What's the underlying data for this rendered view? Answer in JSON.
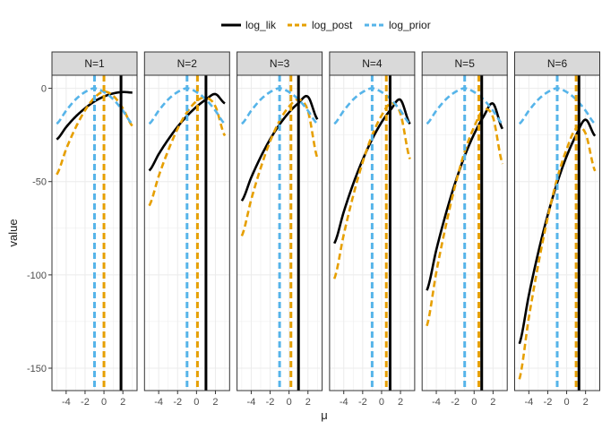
{
  "chart_data": {
    "type": "line",
    "facet_prefix": "N=",
    "facets": [
      {
        "label": "N=1",
        "n": 1
      },
      {
        "label": "N=2",
        "n": 2
      },
      {
        "label": "N=3",
        "n": 3
      },
      {
        "label": "N=4",
        "n": 4
      },
      {
        "label": "N=5",
        "n": 5
      },
      {
        "label": "N=6",
        "n": 6
      }
    ],
    "xlabel": "μ",
    "ylabel": "value",
    "x_range": [
      -5.5,
      3.5
    ],
    "ylim": [
      -162,
      7
    ],
    "x_ticks": [
      -4,
      -2,
      0,
      2
    ],
    "x_tick_labels": [
      "-4",
      "-2",
      "0",
      "2"
    ],
    "y_ticks": [
      0,
      -50,
      -100,
      -150
    ],
    "y_tick_labels": [
      "0",
      "-50",
      "-100",
      "-150"
    ],
    "grid": true,
    "legend_position": "top",
    "legend": [
      {
        "name": "log_lik",
        "color": "#000000",
        "dash": "solid"
      },
      {
        "name": "log_post",
        "color": "#E69F00",
        "dash": "dashed"
      },
      {
        "name": "log_prior",
        "color": "#56B4E9",
        "dash": "dashed"
      }
    ],
    "prior": {
      "mean": -1,
      "sd": 3
    },
    "likelihood": {
      "sd": 1,
      "n_per_facet": [
        1,
        2,
        3,
        4,
        5,
        6
      ]
    },
    "vertical_lines": [
      {
        "facet": "N=1",
        "log_lik": 1.8,
        "log_post": 0.0,
        "log_prior": -1
      },
      {
        "facet": "N=2",
        "log_lik": 1.0,
        "log_post": 0.1,
        "log_prior": -1
      },
      {
        "facet": "N=3",
        "log_lik": 1.0,
        "log_post": 0.2,
        "log_prior": -1
      },
      {
        "facet": "N=4",
        "log_lik": 0.9,
        "log_post": 0.5,
        "log_prior": -1
      },
      {
        "facet": "N=5",
        "log_lik": 0.8,
        "log_post": 0.5,
        "log_prior": -1
      },
      {
        "facet": "N=6",
        "log_lik": 1.3,
        "log_post": 1.0,
        "log_prior": -1
      }
    ],
    "series": [
      {
        "name": "log_lik",
        "x": [
          -5,
          -4,
          -3,
          -2,
          -1,
          0,
          1,
          2,
          3
        ],
        "facet_values": [
          [
            -27.4,
            -20.8,
            -15.2,
            -10.7,
            -7.0,
            -4.4,
            -2.7,
            -2.0,
            -2.3
          ],
          [
            -44.1,
            -35.3,
            -27.5,
            -20.6,
            -14.8,
            -9.9,
            -6.0,
            -3.1,
            -8.1
          ],
          [
            -60.3,
            -47.8,
            -36.8,
            -27.3,
            -19.4,
            -12.9,
            -7.9,
            -4.5,
            -16.6
          ],
          [
            -83.1,
            -66.2,
            -51.2,
            -38.3,
            -27.3,
            -18.2,
            -11.2,
            -6.2,
            -19.1
          ],
          [
            -108.3,
            -86.6,
            -67.4,
            -50.6,
            -36.3,
            -24.5,
            -15.1,
            -8.2,
            -21.7
          ],
          [
            -136.9,
            -110.9,
            -87.9,
            -67.8,
            -50.6,
            -36.4,
            -25.1,
            -16.8,
            -25.5
          ]
        ]
      },
      {
        "name": "log_post",
        "x": [
          -5,
          -4,
          -3,
          -2,
          -1,
          0,
          1,
          2,
          3
        ],
        "facet_values": [
          [
            -46.2,
            -32.6,
            -21.1,
            -11.8,
            -5.0,
            -1.8,
            -4.1,
            -10.8,
            -20.1
          ],
          [
            -62.9,
            -47.1,
            -33.4,
            -21.7,
            -12.8,
            -6.9,
            -5.0,
            -9.7,
            -25.4
          ],
          [
            -79.1,
            -59.6,
            -42.7,
            -28.4,
            -17.4,
            -9.8,
            -6.0,
            -12.1,
            -37.4
          ],
          [
            -102.1,
            -78.4,
            -57.5,
            -39.6,
            -25.2,
            -14.6,
            -8.0,
            -13.6,
            -37.9
          ],
          [
            -127.3,
            -98.6,
            -73.8,
            -52.0,
            -34.0,
            -20.7,
            -11.6,
            -15.6,
            -40.5
          ],
          [
            -155.9,
            -122.9,
            -94.3,
            -69.2,
            -48.3,
            -32.6,
            -21.5,
            -24.2,
            -44.3
          ]
        ]
      },
      {
        "name": "log_prior",
        "x": [
          -5,
          -4,
          -3,
          -2,
          -1,
          0,
          1,
          2,
          3
        ],
        "values": [
          -19.0,
          -12.0,
          -6.0,
          -2.0,
          0.0,
          -2.0,
          -6.0,
          -12.0,
          -19.0
        ]
      }
    ]
  }
}
